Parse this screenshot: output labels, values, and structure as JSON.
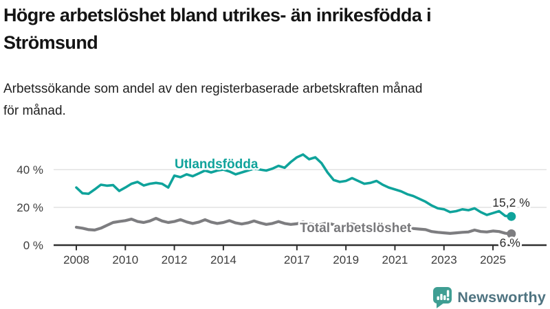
{
  "header": {
    "title": "Högre arbetslöshet bland utrikes- än inrikesfödda i Strömsund",
    "title_lines": [
      "Högre arbetslöshet bland utrikes- än inrikesfödda i",
      "Strömsund"
    ],
    "subtitle": "Arbetssökande som andel av den registerbaserade arbetskraften månad för månad.",
    "subtitle_lines": [
      "Arbetssökande som andel av den registerbaserade arbetskraften månad",
      "för månad."
    ]
  },
  "footer": {
    "brand": "Newsworthy",
    "logo_icon": "newsworthy-speech-bubble-bar-chart-icon"
  },
  "colors": {
    "series_teal": "#0FA39B",
    "series_gray": "#7D7D80",
    "grid": "#E2E2E2",
    "axis": "#2F2F2F",
    "annotation_text": "#2B2B2B",
    "logo_teal": "#3F9E93",
    "brand_text": "#4E7380"
  },
  "chart_data": {
    "type": "line",
    "xlabel": "",
    "ylabel": "",
    "unit": "%",
    "x_ticks": [
      2008,
      2010,
      2012,
      2014,
      2017,
      2019,
      2021,
      2023,
      2025
    ],
    "y_ticks": [
      {
        "value": 0,
        "label": "0 %"
      },
      {
        "value": 20,
        "label": "20 %"
      },
      {
        "value": 40,
        "label": "40 %"
      }
    ],
    "xlim": [
      2007.8,
      2026.2
    ],
    "ylim": [
      0,
      52
    ],
    "grid": "horizontal",
    "legend_position": "inline-labels",
    "series": [
      {
        "name": "Utlandsfödda",
        "color": "#0FA39B",
        "end_label": "15,2 %",
        "end_value": 15.2,
        "points": [
          [
            2008,
            30.5
          ],
          [
            2008.25,
            27.5
          ],
          [
            2008.5,
            27.2
          ],
          [
            2008.75,
            29.5
          ],
          [
            2009,
            32
          ],
          [
            2009.25,
            31.5
          ],
          [
            2009.5,
            31.8
          ],
          [
            2009.75,
            28.7
          ],
          [
            2010,
            30.5
          ],
          [
            2010.25,
            32.5
          ],
          [
            2010.5,
            33.5
          ],
          [
            2010.75,
            31.6
          ],
          [
            2011,
            32.5
          ],
          [
            2011.25,
            33
          ],
          [
            2011.5,
            32.5
          ],
          [
            2011.75,
            30.5
          ],
          [
            2012,
            36.8
          ],
          [
            2012.25,
            36
          ],
          [
            2012.5,
            37.5
          ],
          [
            2012.75,
            36.5
          ],
          [
            2013,
            38
          ],
          [
            2013.25,
            39.5
          ],
          [
            2013.5,
            38.5
          ],
          [
            2013.75,
            39.5
          ],
          [
            2014,
            40
          ],
          [
            2014.25,
            39
          ],
          [
            2014.5,
            37.5
          ],
          [
            2014.75,
            38.5
          ],
          [
            2015,
            39.5
          ],
          [
            2015.25,
            40.5
          ],
          [
            2015.5,
            40
          ],
          [
            2015.75,
            39.5
          ],
          [
            2016,
            40.5
          ],
          [
            2016.25,
            42
          ],
          [
            2016.5,
            41
          ],
          [
            2016.75,
            44
          ],
          [
            2017,
            46.5
          ],
          [
            2017.25,
            48
          ],
          [
            2017.5,
            45.5
          ],
          [
            2017.75,
            46.5
          ],
          [
            2018,
            43.5
          ],
          [
            2018.25,
            38.5
          ],
          [
            2018.5,
            34.5
          ],
          [
            2018.75,
            33.5
          ],
          [
            2019,
            34
          ],
          [
            2019.25,
            35.5
          ],
          [
            2019.5,
            34
          ],
          [
            2019.75,
            32.5
          ],
          [
            2020,
            33
          ],
          [
            2020.25,
            34
          ],
          [
            2020.5,
            32
          ],
          [
            2020.75,
            30.5
          ],
          [
            2021,
            29.5
          ],
          [
            2021.25,
            28.5
          ],
          [
            2021.5,
            27
          ],
          [
            2021.75,
            26
          ],
          [
            2022,
            24.5
          ],
          [
            2022.25,
            23
          ],
          [
            2022.5,
            21
          ],
          [
            2022.75,
            19.5
          ],
          [
            2023,
            19
          ],
          [
            2023.25,
            17.5
          ],
          [
            2023.5,
            18
          ],
          [
            2023.75,
            19
          ],
          [
            2024,
            18.5
          ],
          [
            2024.25,
            19.5
          ],
          [
            2024.5,
            17.5
          ],
          [
            2024.75,
            16
          ],
          [
            2025,
            17
          ],
          [
            2025.25,
            18
          ],
          [
            2025.5,
            15.5
          ],
          [
            2025.75,
            15.2
          ]
        ]
      },
      {
        "name": "Total arbetslöshet",
        "color": "#7D7D80",
        "end_label": "6 %",
        "end_value": 6.0,
        "points": [
          [
            2008,
            9.5
          ],
          [
            2008.25,
            9
          ],
          [
            2008.5,
            8.2
          ],
          [
            2008.75,
            8
          ],
          [
            2009,
            9
          ],
          [
            2009.25,
            10.5
          ],
          [
            2009.5,
            12
          ],
          [
            2009.75,
            12.5
          ],
          [
            2010,
            13
          ],
          [
            2010.25,
            13.8
          ],
          [
            2010.5,
            12.5
          ],
          [
            2010.75,
            12
          ],
          [
            2011,
            12.8
          ],
          [
            2011.25,
            14.2
          ],
          [
            2011.5,
            12.8
          ],
          [
            2011.75,
            12
          ],
          [
            2012,
            12.5
          ],
          [
            2012.25,
            13.5
          ],
          [
            2012.5,
            12.3
          ],
          [
            2012.75,
            11.5
          ],
          [
            2013,
            12.2
          ],
          [
            2013.25,
            13.5
          ],
          [
            2013.5,
            12.2
          ],
          [
            2013.75,
            11.5
          ],
          [
            2014,
            12
          ],
          [
            2014.25,
            13
          ],
          [
            2014.5,
            11.8
          ],
          [
            2014.75,
            11.2
          ],
          [
            2015,
            11.8
          ],
          [
            2015.25,
            12.8
          ],
          [
            2015.5,
            11.8
          ],
          [
            2015.75,
            11
          ],
          [
            2016,
            11.5
          ],
          [
            2016.25,
            12.5
          ],
          [
            2016.5,
            11.5
          ],
          [
            2016.75,
            11
          ],
          [
            2017,
            11.3
          ],
          [
            2017.25,
            12.2
          ],
          [
            2017.5,
            11.2
          ],
          [
            2017.75,
            10.8
          ],
          [
            2018,
            11
          ],
          [
            2018.25,
            11.8
          ],
          [
            2018.5,
            10.8
          ],
          [
            2018.75,
            10.2
          ],
          [
            2019,
            10.5
          ],
          [
            2019.25,
            11.2
          ],
          [
            2019.5,
            10.5
          ],
          [
            2019.75,
            10
          ],
          [
            2020,
            10.3
          ],
          [
            2020.25,
            11
          ],
          [
            2020.5,
            10.5
          ],
          [
            2020.75,
            10
          ],
          [
            2021,
            9.8
          ],
          [
            2021.25,
            10.2
          ],
          [
            2021.5,
            9.2
          ],
          [
            2021.75,
            8.8
          ],
          [
            2022,
            8.5
          ],
          [
            2022.25,
            8.2
          ],
          [
            2022.5,
            7.2
          ],
          [
            2022.75,
            6.8
          ],
          [
            2023,
            6.5
          ],
          [
            2023.25,
            6.2
          ],
          [
            2023.5,
            6.5
          ],
          [
            2023.75,
            6.8
          ],
          [
            2024,
            7
          ],
          [
            2024.25,
            8
          ],
          [
            2024.5,
            7.2
          ],
          [
            2024.75,
            7
          ],
          [
            2025,
            7.5
          ],
          [
            2025.25,
            7.2
          ],
          [
            2025.5,
            6.3
          ],
          [
            2025.75,
            6
          ]
        ]
      }
    ]
  }
}
